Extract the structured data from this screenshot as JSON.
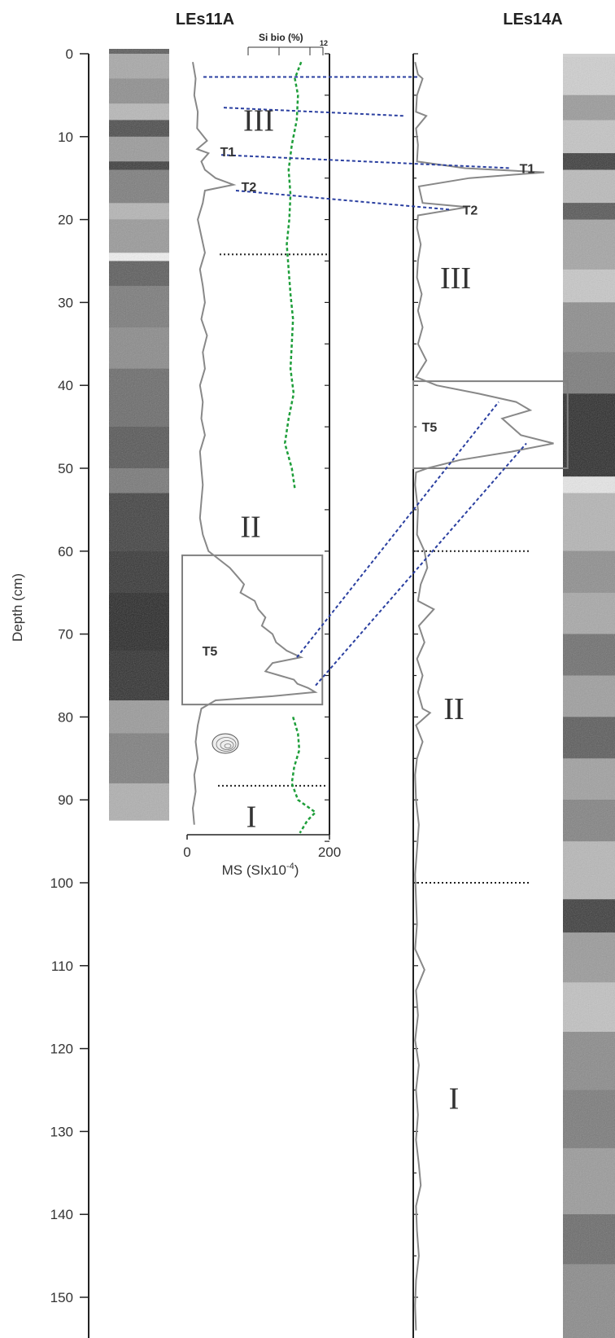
{
  "chart_data": {
    "type": "line",
    "ylabel": "Depth (cm)",
    "ylim": [
      0,
      155
    ],
    "y_ticks": [
      0,
      10,
      20,
      30,
      40,
      50,
      60,
      70,
      80,
      90,
      100,
      110,
      120,
      130,
      140,
      150
    ],
    "colors": {
      "ms": "#888888",
      "sibio": "#1e9e3a",
      "correlation": "#2a3fa0",
      "unit_boundary": "#222222",
      "box": "#808080"
    },
    "cores": [
      {
        "name": "LEs11A",
        "core_bottom_depth": 92.5,
        "xlabel_main": "MS (SIx10",
        "xlabel_sup": "-4",
        "xlabel_end": ")",
        "x_ticks": [
          "0",
          "200"
        ],
        "xlim": [
          0,
          200
        ],
        "secondary_axis": {
          "label": "Si bio (%)",
          "max_label": "12",
          "range": [
            0,
            12
          ]
        },
        "series": [
          {
            "name": "MS",
            "depth": [
              1,
              3,
              5,
              7,
              9,
              10.5,
              11.5,
              12,
              13,
              14,
              15,
              15.8,
              16.5,
              18,
              20,
              22,
              24,
              26,
              28,
              30,
              32,
              34,
              36,
              38,
              40,
              42,
              44,
              46,
              48,
              50,
              52,
              54,
              56,
              58,
              60,
              61,
              62,
              63,
              64,
              65,
              66,
              67,
              68,
              69,
              70,
              71,
              72,
              72.8,
              73.5,
              74.5,
              75,
              75.5,
              76,
              76.5,
              77,
              77.5,
              78,
              79,
              81,
              83,
              85,
              87,
              89,
              91,
              93
            ],
            "values": [
              8,
              12,
              10,
              15,
              14,
              28,
              14,
              30,
              20,
              25,
              40,
              65,
              25,
              22,
              15,
              20,
              25,
              18,
              22,
              25,
              20,
              28,
              22,
              25,
              18,
              22,
              20,
              25,
              18,
              20,
              22,
              20,
              18,
              22,
              30,
              45,
              60,
              70,
              80,
              75,
              95,
              100,
              110,
              105,
              120,
              125,
              140,
              160,
              120,
              110,
              130,
              150,
              155,
              170,
              180,
              120,
              40,
              20,
              15,
              12,
              15,
              10,
              12,
              8,
              10
            ]
          },
          {
            "name": "Si bio",
            "depth": [
              1,
              3,
              5,
              8,
              11,
              14,
              17,
              20,
              23,
              26,
              29,
              32,
              35,
              38,
              41,
              44,
              47,
              50,
              52.5
            ],
            "values": [
              8.5,
              7.5,
              8.0,
              7.8,
              7.0,
              6.5,
              6.8,
              6.6,
              6.2,
              6.5,
              6.8,
              7.2,
              7.0,
              6.8,
              7.3,
              6.5,
              5.9,
              7.0,
              7.5
            ],
            "style": "dashed"
          },
          {
            "name": "Si bio",
            "depth": [
              80,
              82,
              84,
              86,
              88,
              90,
              91.5,
              92.5,
              94
            ],
            "values": [
              7.2,
              8.0,
              8.2,
              7.4,
              7.0,
              8.0,
              10.8,
              9.5,
              8.3
            ],
            "style": "dashed"
          }
        ],
        "units": [
          {
            "label": "III",
            "depth": 8
          },
          {
            "label": "II",
            "depth": 57
          },
          {
            "label": "I",
            "depth": 92
          }
        ],
        "unit_boundaries": [
          24.2,
          88.3
        ],
        "tephras": [
          {
            "label": "T1",
            "depth": 11.8
          },
          {
            "label": "T2",
            "depth": 16
          },
          {
            "label": "T5",
            "depth": 72
          }
        ],
        "boxes": [
          {
            "depth_top": 60.5,
            "depth_bottom": 78.5,
            "x_max": 190
          }
        ]
      },
      {
        "name": "LEs14A",
        "core_bottom_depth": 155,
        "x_max_plot": 155,
        "series": [
          {
            "name": "MS",
            "depth": [
              1,
              2.5,
              3,
              5,
              7,
              7.5,
              9,
              11,
              13,
              13.8,
              14.3,
              15,
              16,
              18,
              18.5,
              19.5,
              21,
              23,
              25,
              27,
              29,
              31,
              33,
              35,
              37,
              39,
              40,
              41,
              42,
              43,
              44,
              45,
              46,
              47,
              48,
              49,
              50,
              50.5,
              52,
              55,
              58,
              60,
              62,
              64,
              66,
              67,
              69,
              71,
              73,
              75,
              77,
              79,
              79.5,
              81,
              83,
              85,
              87,
              90,
              93,
              96,
              99,
              102,
              105,
              108,
              110.5,
              113,
              116,
              119,
              122,
              125,
              128,
              131,
              134,
              136.5,
              139,
              142,
              145,
              148,
              151,
              154
            ],
            "values": [
              2,
              5,
              10,
              4,
              3,
              14,
              3,
              5,
              4,
              55,
              140,
              60,
              6,
              10,
              58,
              5,
              4,
              8,
              5,
              4,
              9,
              5,
              10,
              5,
              14,
              3,
              25,
              70,
              110,
              125,
              95,
              105,
              115,
              150,
              105,
              50,
              15,
              3,
              2,
              5,
              4,
              12,
              15,
              8,
              5,
              22,
              6,
              12,
              4,
              10,
              5,
              10,
              18,
              3,
              10,
              4,
              2,
              3,
              6,
              4,
              2,
              3,
              4,
              2,
              12,
              3,
              5,
              2,
              6,
              3,
              5,
              3,
              6,
              8,
              3,
              4,
              6,
              3,
              2,
              3
            ]
          }
        ],
        "units": [
          {
            "label": "III",
            "depth": 27
          },
          {
            "label": "II",
            "depth": 79
          },
          {
            "label": "I",
            "depth": 126
          }
        ],
        "unit_boundaries": [
          60,
          100
        ],
        "tephras": [
          {
            "label": "T1",
            "depth": 13.8
          },
          {
            "label": "T2",
            "depth": 18.8
          },
          {
            "label": "T5",
            "depth": 45
          }
        ],
        "boxes": [
          {
            "depth_top": 39.5,
            "depth_bottom": 50,
            "x_max": 165
          }
        ]
      }
    ],
    "correlations": [
      {
        "from": [
          0,
          2.8
        ],
        "to": [
          1,
          2.8
        ]
      },
      {
        "from": [
          0,
          6.5
        ],
        "to": [
          1,
          7.5
        ]
      },
      {
        "from": [
          0,
          12.2
        ],
        "to": [
          1,
          13.8
        ]
      },
      {
        "from": [
          0,
          16.5
        ],
        "to": [
          1,
          18.8
        ]
      },
      {
        "from": [
          0,
          72.8
        ],
        "to": [
          1,
          42
        ]
      },
      {
        "from": [
          0,
          76.2
        ],
        "to": [
          1,
          47
        ]
      }
    ]
  }
}
